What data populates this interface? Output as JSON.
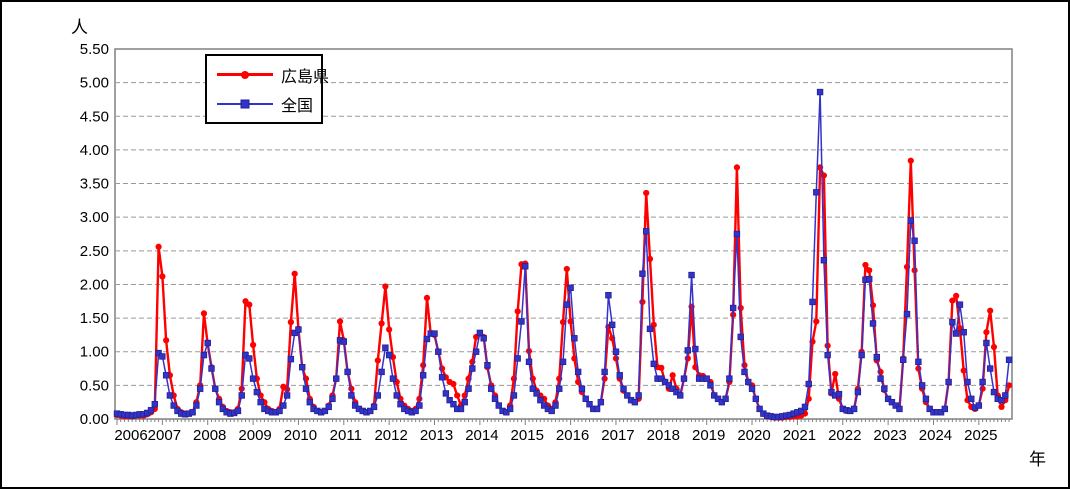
{
  "figure": {
    "y_axis_unit": "人",
    "x_axis_unit": "年",
    "y_tick_labels": [
      "0.00",
      "0.50",
      "1.00",
      "1.50",
      "2.00",
      "2.50",
      "3.00",
      "3.50",
      "4.00",
      "4.50",
      "5.00",
      "5.50"
    ]
  },
  "legend": {
    "series1_label": "広島県",
    "series2_label": "全国"
  },
  "colors": {
    "series1": "#ff0000",
    "series2": "#3333cc",
    "gridline": "#999999",
    "plot_border": "#808080",
    "text": "#000000",
    "background": "#ffffff",
    "figure_border": "#000000"
  },
  "chart_data": {
    "type": "line",
    "title": "",
    "ylabel": "人",
    "xlabel": "年",
    "ylim": [
      0,
      5.5
    ],
    "ytick_interval": 0.5,
    "grid": "horizontal-dashed",
    "legend_position": "top-left-inside",
    "x_frequency": "monthly",
    "x_start": "2006-01",
    "x_end": "2025-09",
    "years": [
      2006,
      2007,
      2008,
      2009,
      2010,
      2011,
      2012,
      2013,
      2014,
      2015,
      2016,
      2017,
      2018,
      2019,
      2020,
      2021,
      2022,
      2023,
      2024,
      2025
    ],
    "series": [
      {
        "name": "広島県",
        "color": "#ff0000",
        "marker": "circle",
        "values": [
          0.06,
          0.05,
          0.04,
          0.04,
          0.04,
          0.05,
          0.05,
          0.05,
          0.07,
          0.1,
          0.15,
          2.56,
          2.12,
          1.17,
          0.65,
          0.35,
          0.15,
          0.1,
          0.08,
          0.08,
          0.1,
          0.25,
          0.5,
          1.57,
          1.12,
          0.77,
          0.45,
          0.3,
          0.18,
          0.12,
          0.1,
          0.1,
          0.15,
          0.45,
          1.75,
          1.7,
          1.1,
          0.6,
          0.35,
          0.25,
          0.15,
          0.12,
          0.1,
          0.15,
          0.48,
          0.44,
          1.44,
          2.16,
          1.34,
          0.77,
          0.6,
          0.3,
          0.18,
          0.12,
          0.1,
          0.12,
          0.2,
          0.35,
          0.6,
          1.45,
          1.17,
          0.7,
          0.45,
          0.25,
          0.15,
          0.12,
          0.1,
          0.12,
          0.2,
          0.87,
          1.42,
          1.97,
          1.33,
          0.92,
          0.55,
          0.3,
          0.2,
          0.15,
          0.12,
          0.15,
          0.3,
          0.8,
          1.8,
          1.27,
          1.25,
          1.0,
          0.75,
          0.62,
          0.55,
          0.52,
          0.35,
          0.2,
          0.35,
          0.6,
          0.85,
          1.22,
          1.27,
          1.22,
          0.77,
          0.5,
          0.35,
          0.2,
          0.12,
          0.1,
          0.2,
          0.6,
          1.6,
          2.3,
          2.31,
          1.01,
          0.6,
          0.42,
          0.35,
          0.3,
          0.2,
          0.15,
          0.25,
          0.6,
          1.44,
          2.23,
          1.45,
          0.9,
          0.55,
          0.4,
          0.3,
          0.22,
          0.15,
          0.15,
          0.25,
          0.6,
          1.37,
          1.2,
          0.9,
          0.6,
          0.42,
          0.35,
          0.28,
          0.25,
          0.3,
          1.74,
          3.36,
          2.38,
          1.4,
          0.77,
          0.76,
          0.55,
          0.45,
          0.65,
          0.45,
          0.35,
          0.6,
          0.9,
          1.67,
          0.77,
          0.65,
          0.64,
          0.6,
          0.55,
          0.35,
          0.3,
          0.25,
          0.3,
          0.55,
          1.55,
          3.74,
          1.65,
          0.8,
          0.55,
          0.5,
          0.3,
          0.15,
          0.08,
          0.04,
          0.03,
          0.02,
          0.02,
          0.02,
          0.03,
          0.03,
          0.04,
          0.04,
          0.05,
          0.08,
          0.3,
          1.15,
          1.45,
          3.74,
          3.62,
          1.09,
          0.38,
          0.67,
          0.3,
          0.15,
          0.12,
          0.12,
          0.15,
          0.45,
          1.0,
          2.29,
          2.21,
          1.69,
          0.87,
          0.7,
          0.43,
          0.3,
          0.25,
          0.2,
          0.15,
          0.9,
          2.26,
          3.84,
          2.21,
          0.75,
          0.45,
          0.25,
          0.15,
          0.1,
          0.1,
          0.1,
          0.15,
          0.55,
          1.76,
          1.83,
          1.35,
          0.72,
          0.28,
          0.18,
          0.15,
          0.2,
          0.45,
          1.29,
          1.61,
          1.07,
          0.35,
          0.18,
          0.28,
          0.5
        ]
      },
      {
        "name": "全国",
        "color": "#3333cc",
        "marker": "square",
        "values": [
          0.08,
          0.07,
          0.06,
          0.06,
          0.05,
          0.06,
          0.07,
          0.07,
          0.09,
          0.13,
          0.22,
          0.98,
          0.93,
          0.65,
          0.35,
          0.2,
          0.12,
          0.08,
          0.07,
          0.08,
          0.1,
          0.2,
          0.45,
          0.95,
          1.13,
          0.75,
          0.45,
          0.25,
          0.15,
          0.1,
          0.08,
          0.09,
          0.12,
          0.35,
          0.95,
          0.9,
          0.6,
          0.4,
          0.25,
          0.15,
          0.12,
          0.1,
          0.1,
          0.12,
          0.2,
          0.35,
          0.89,
          1.28,
          1.33,
          0.77,
          0.45,
          0.25,
          0.15,
          0.12,
          0.1,
          0.12,
          0.18,
          0.3,
          0.6,
          1.17,
          1.15,
          0.7,
          0.35,
          0.2,
          0.15,
          0.12,
          0.1,
          0.12,
          0.18,
          0.35,
          0.7,
          1.06,
          0.95,
          0.6,
          0.35,
          0.22,
          0.15,
          0.12,
          0.1,
          0.12,
          0.2,
          0.65,
          1.19,
          1.27,
          1.27,
          1.0,
          0.62,
          0.38,
          0.28,
          0.22,
          0.15,
          0.15,
          0.25,
          0.45,
          0.75,
          1.0,
          1.28,
          1.2,
          0.8,
          0.45,
          0.3,
          0.2,
          0.12,
          0.1,
          0.15,
          0.35,
          0.9,
          1.45,
          2.27,
          0.85,
          0.45,
          0.38,
          0.28,
          0.2,
          0.15,
          0.12,
          0.2,
          0.45,
          0.85,
          1.7,
          1.95,
          1.2,
          0.7,
          0.45,
          0.3,
          0.22,
          0.15,
          0.15,
          0.25,
          0.7,
          1.84,
          1.4,
          1.0,
          0.65,
          0.45,
          0.35,
          0.28,
          0.25,
          0.35,
          2.16,
          2.79,
          1.34,
          0.82,
          0.6,
          0.6,
          0.55,
          0.5,
          0.45,
          0.4,
          0.35,
          0.6,
          1.02,
          2.14,
          1.04,
          0.6,
          0.6,
          0.6,
          0.5,
          0.35,
          0.3,
          0.25,
          0.3,
          0.6,
          1.65,
          2.75,
          1.22,
          0.7,
          0.55,
          0.45,
          0.3,
          0.15,
          0.08,
          0.05,
          0.04,
          0.03,
          0.03,
          0.04,
          0.05,
          0.06,
          0.08,
          0.1,
          0.12,
          0.18,
          0.52,
          1.74,
          3.37,
          4.86,
          2.36,
          0.95,
          0.4,
          0.35,
          0.37,
          0.15,
          0.13,
          0.12,
          0.15,
          0.4,
          0.95,
          2.07,
          2.08,
          1.42,
          0.92,
          0.6,
          0.45,
          0.3,
          0.25,
          0.2,
          0.15,
          0.88,
          1.56,
          2.95,
          2.65,
          0.85,
          0.5,
          0.3,
          0.15,
          0.1,
          0.1,
          0.1,
          0.15,
          0.55,
          1.44,
          1.27,
          1.7,
          1.29,
          0.55,
          0.3,
          0.17,
          0.2,
          0.55,
          1.13,
          0.75,
          0.4,
          0.3,
          0.28,
          0.35,
          0.88
        ]
      }
    ]
  }
}
